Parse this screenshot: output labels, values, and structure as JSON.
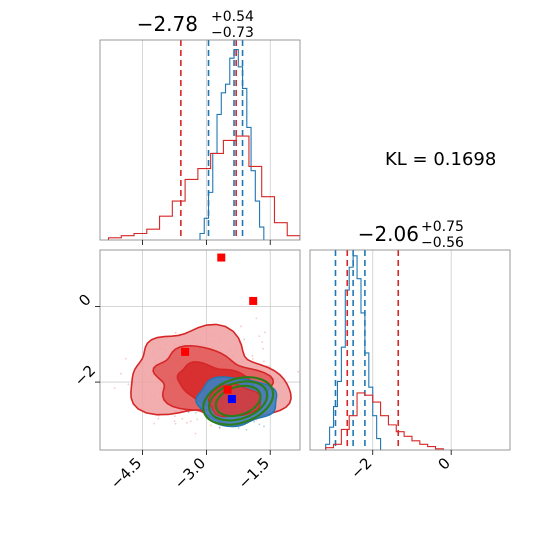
{
  "colors": {
    "blue": "#1f77b4",
    "red": "#d62728",
    "green": "#2e7d1a",
    "grid": "#cccccc",
    "axis": "#7f7f7f"
  },
  "titles": {
    "top": {
      "main": "−2.78",
      "sup": "+0.54",
      "sub": "−0.73"
    },
    "right": {
      "main": "−2.06",
      "sup": "+0.75",
      "sub": "−0.56"
    }
  },
  "kl_label": "KL = 0.1698",
  "chart_data": [
    {
      "type": "histogram",
      "panel": "top-left marginal",
      "xlim": [
        -5.5,
        -0.8
      ],
      "xticks": [
        -4.5,
        -3.0,
        -1.5
      ],
      "grid": true,
      "series": [
        {
          "color": "#1f77b4",
          "x_edges": [
            -3.15,
            -3.05,
            -2.95,
            -2.85,
            -2.75,
            -2.65,
            -2.55,
            -2.45,
            -2.35,
            -2.25,
            -2.15,
            -2.05,
            -1.95,
            -1.85,
            -1.75,
            -1.65
          ],
          "counts": [
            3,
            10,
            22,
            40,
            58,
            68,
            72,
            84,
            88,
            80,
            70,
            52,
            32,
            18,
            6
          ],
          "quantile_lines": [
            -2.95,
            -2.35,
            -2.15
          ]
        },
        {
          "color": "#d62728",
          "x_edges": [
            -5.3,
            -5.0,
            -4.7,
            -4.4,
            -4.1,
            -3.8,
            -3.5,
            -3.2,
            -2.9,
            -2.6,
            -2.3,
            -2.0,
            -1.7,
            -1.4,
            -1.1,
            -0.8
          ],
          "counts": [
            1,
            2,
            3,
            5,
            11,
            18,
            28,
            33,
            40,
            46,
            48,
            34,
            20,
            8,
            2
          ],
          "quantile_lines": [
            -3.6,
            -2.3
          ]
        }
      ]
    },
    {
      "type": "scatter",
      "panel": "bottom-left joint",
      "xlim": [
        -5.5,
        -0.8
      ],
      "ylim": [
        -3.8,
        1.5
      ],
      "xticks": [
        -4.5,
        -3.0,
        -1.5
      ],
      "yticks": [
        0,
        -2
      ],
      "grid": true,
      "contours": [
        {
          "color": "#d62728",
          "fill_opacity": 0.5,
          "levels": 3,
          "center": [
            -3.0,
            -1.9
          ]
        },
        {
          "color": "#1f77b4",
          "fill_opacity": 0.8,
          "levels": 2,
          "center": [
            -2.3,
            -2.5
          ]
        },
        {
          "color": "#2e7d1a",
          "fill_opacity": 0,
          "levels": 3,
          "center": [
            -2.3,
            -2.5
          ]
        }
      ],
      "markers": [
        {
          "color": "#ff0000",
          "x": -2.65,
          "y": 1.3
        },
        {
          "color": "#ff0000",
          "x": -1.9,
          "y": 0.15
        },
        {
          "color": "#ff0000",
          "x": -3.5,
          "y": -1.2
        },
        {
          "color": "#ff0000",
          "x": -2.5,
          "y": -2.2
        },
        {
          "color": "#0000ff",
          "x": -2.4,
          "y": -2.45
        }
      ]
    },
    {
      "type": "histogram",
      "panel": "bottom-right marginal",
      "xlim": [
        -3.6,
        1.5
      ],
      "xticks": [
        -2,
        0
      ],
      "grid": true,
      "series": [
        {
          "color": "#1f77b4",
          "x_edges": [
            -3.2,
            -3.1,
            -3.0,
            -2.9,
            -2.8,
            -2.7,
            -2.6,
            -2.5,
            -2.4,
            -2.3,
            -2.2,
            -2.1,
            -2.0,
            -1.9,
            -1.8
          ],
          "counts": [
            5,
            20,
            38,
            60,
            90,
            140,
            160,
            170,
            150,
            120,
            85,
            55,
            30,
            10
          ],
          "quantile_lines": [
            -2.95,
            -2.5,
            -2.2
          ]
        },
        {
          "color": "#d62728",
          "x_edges": [
            -3.2,
            -3.0,
            -2.8,
            -2.6,
            -2.4,
            -2.2,
            -2.0,
            -1.8,
            -1.6,
            -1.4,
            -1.2,
            -1.0,
            -0.8,
            -0.6,
            -0.4,
            -0.2
          ],
          "counts": [
            2,
            5,
            18,
            30,
            50,
            48,
            42,
            30,
            22,
            16,
            12,
            8,
            5,
            3,
            1
          ],
          "quantile_lines": [
            -2.65,
            -1.35
          ]
        }
      ]
    }
  ]
}
